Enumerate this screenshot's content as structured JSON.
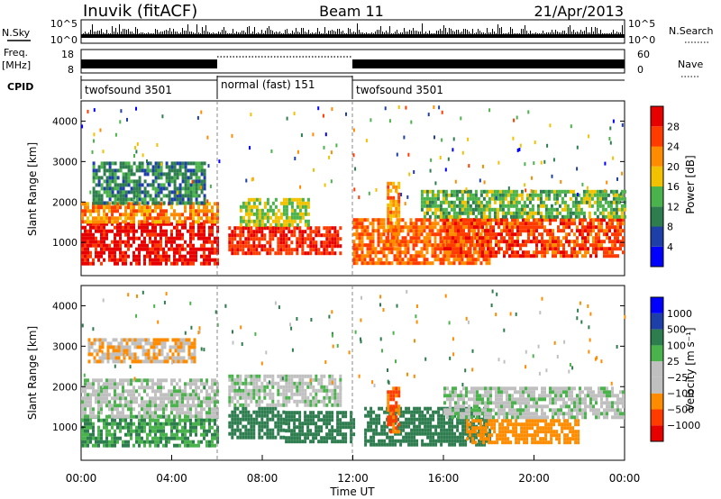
{
  "header": {
    "station": "Inuvik (fitACF)",
    "beam": "Beam 11",
    "date": "21/Apr/2013"
  },
  "strips": {
    "nsky_label": "N.Sky",
    "nsky_ticks": [
      "10^5",
      "10^0"
    ],
    "nsearch_label": "N.Search",
    "nsearch_ticks": [
      "10^5",
      "10^0"
    ],
    "freq_label": "Freq.",
    "freq_unit": "[MHz]",
    "freq_ticks": [
      "18",
      "8"
    ],
    "nave_label": "Nave",
    "nave_ticks": [
      "60",
      "0"
    ],
    "cpid_label": "CPID",
    "cpid_segments": [
      {
        "label": "twofsound 3501",
        "start_h": 0,
        "end_h": 6
      },
      {
        "label": "normal (fast) 151",
        "start_h": 6,
        "end_h": 12
      },
      {
        "label": "twofsound 3501",
        "start_h": 12,
        "end_h": 24
      }
    ]
  },
  "chart_data": [
    {
      "type": "heatmap",
      "title": "Power",
      "ylabel": "Slant Range [km]",
      "ylim": [
        180,
        4500
      ],
      "yticks": [
        1000,
        2000,
        3000,
        4000
      ],
      "xlim": [
        0,
        24
      ],
      "colorbar_label": "Power [dB]",
      "colorbar_ticks": [
        "28",
        "24",
        "20",
        "16",
        "12",
        "8",
        "4"
      ],
      "colors": [
        "#0000ff",
        "#1f3fa8",
        "#2e7d4f",
        "#4bb34b",
        "#f2c200",
        "#ff8c00",
        "#ff3b00",
        "#e60000"
      ],
      "bands": [
        {
          "start_h": 0.0,
          "end_h": 6.0,
          "low_km": 500,
          "high_km": 1500,
          "level": 28
        },
        {
          "start_h": 0.0,
          "end_h": 6.0,
          "low_km": 1500,
          "high_km": 2000,
          "level": 20
        },
        {
          "start_h": 0.5,
          "end_h": 5.5,
          "low_km": 2000,
          "high_km": 3000,
          "level": 8
        },
        {
          "start_h": 6.5,
          "end_h": 11.5,
          "low_km": 700,
          "high_km": 1400,
          "level": 26
        },
        {
          "start_h": 7.0,
          "end_h": 10.0,
          "low_km": 1400,
          "high_km": 2100,
          "level": 14
        },
        {
          "start_h": 12.0,
          "end_h": 18.0,
          "low_km": 500,
          "high_km": 1600,
          "level": 22
        },
        {
          "start_h": 13.5,
          "end_h": 14.0,
          "low_km": 900,
          "high_km": 2500,
          "level": 20
        },
        {
          "start_h": 16.0,
          "end_h": 24.0,
          "low_km": 700,
          "high_km": 1600,
          "level": 24
        },
        {
          "start_h": 15.0,
          "end_h": 24.0,
          "low_km": 1600,
          "high_km": 2300,
          "level": 12
        }
      ]
    },
    {
      "type": "heatmap",
      "title": "Velocity",
      "ylabel": "Slant Range [km]",
      "xlabel": "Time UT",
      "ylim": [
        180,
        4500
      ],
      "yticks": [
        1000,
        2000,
        3000,
        4000
      ],
      "xlim": [
        0,
        24
      ],
      "xticks": [
        "00:00",
        "04:00",
        "08:00",
        "12:00",
        "16:00",
        "20:00",
        "00:00"
      ],
      "colorbar_label": "Velocity [m s⁻¹]",
      "colorbar_ticks": [
        "1000",
        "500",
        "100",
        "25",
        "−25",
        "−100",
        "−500",
        "−1000"
      ],
      "colors": [
        "#e60000",
        "#ff3b00",
        "#ff8c00",
        "#c0c0c0",
        "#c0c0c0",
        "#4bb34b",
        "#2e7d4f",
        "#1f3fa8",
        "#0000ff"
      ],
      "bands": [
        {
          "start_h": 0.0,
          "end_h": 6.0,
          "low_km": 500,
          "high_km": 1300,
          "value": 100
        },
        {
          "start_h": 0.0,
          "end_h": 6.0,
          "low_km": 1300,
          "high_km": 2200,
          "value": 0
        },
        {
          "start_h": 0.3,
          "end_h": 5.0,
          "low_km": 2600,
          "high_km": 3200,
          "value": -100
        },
        {
          "start_h": 6.5,
          "end_h": 9.0,
          "low_km": 700,
          "high_km": 1500,
          "value": 200
        },
        {
          "start_h": 9.0,
          "end_h": 12.0,
          "low_km": 600,
          "high_km": 1400,
          "value": 400
        },
        {
          "start_h": 6.5,
          "end_h": 11.5,
          "low_km": 1500,
          "high_km": 2300,
          "value": 0
        },
        {
          "start_h": 12.5,
          "end_h": 18.0,
          "low_km": 600,
          "high_km": 1500,
          "value": 200
        },
        {
          "start_h": 13.5,
          "end_h": 14.0,
          "low_km": 900,
          "high_km": 2000,
          "value": -500
        },
        {
          "start_h": 17.0,
          "end_h": 22.0,
          "low_km": 600,
          "high_km": 1200,
          "value": -300
        },
        {
          "start_h": 16.0,
          "end_h": 24.0,
          "low_km": 1200,
          "high_km": 2000,
          "value": 0
        }
      ]
    }
  ]
}
